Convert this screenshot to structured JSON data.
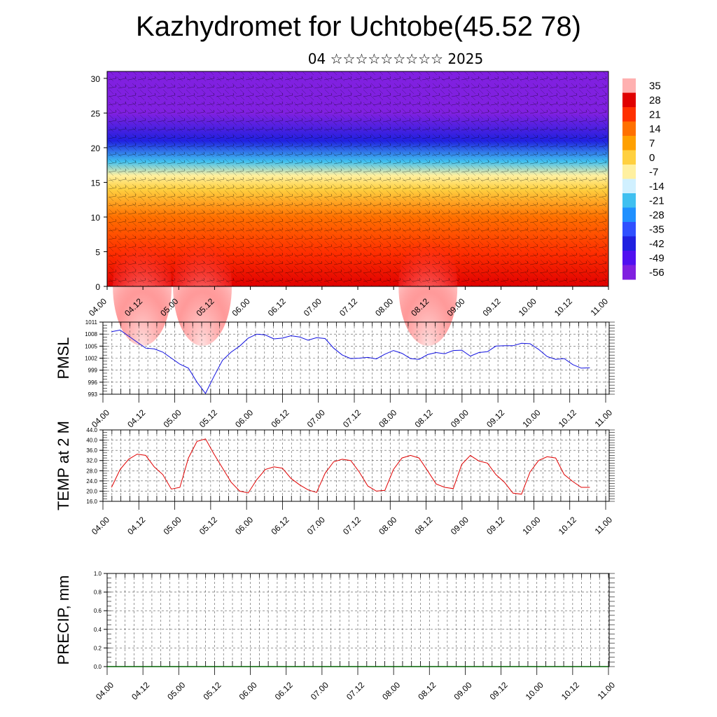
{
  "header": {
    "title": "Kazhydromet for Uchtobe(45.52 78)",
    "subtitle": "04 ☆☆☆☆☆☆☆☆☆ 2025"
  },
  "x_ticks": [
    "04.00",
    "04.12",
    "05.00",
    "05.12",
    "06.00",
    "06.12",
    "07.00",
    "07.12",
    "08.00",
    "08.12",
    "09.00",
    "09.12",
    "10.00",
    "10.12",
    "11.00"
  ],
  "chart_data": [
    {
      "type": "heatmap",
      "name": "vertical-profile",
      "y_ticks": [
        "0",
        "5",
        "10",
        "15",
        "20",
        "25",
        "30"
      ],
      "ylim": [
        0,
        31
      ],
      "colorbar": {
        "labels": [
          "35",
          "28",
          "21",
          "14",
          "7",
          "0",
          "-7",
          "-14",
          "-21",
          "-28",
          "-35",
          "-42",
          "-49",
          "-56"
        ],
        "colors": [
          "#ffb0b0",
          "#e00000",
          "#ff3000",
          "#ff7000",
          "#ffa000",
          "#ffd040",
          "#fff0a0",
          "#d0f0ff",
          "#40c0f0",
          "#2090ff",
          "#3050ff",
          "#2020e0",
          "#5010f0",
          "#8020e0"
        ]
      },
      "temperature_profile": [
        {
          "height": 0,
          "value": 30
        },
        {
          "height": 5,
          "value": 22
        },
        {
          "height": 10,
          "value": 12
        },
        {
          "height": 14,
          "value": 2
        },
        {
          "height": 16,
          "value": -8
        },
        {
          "height": 18,
          "value": -22
        },
        {
          "height": 21,
          "value": -40
        },
        {
          "height": 25,
          "value": -56
        },
        {
          "height": 31,
          "value": -62
        }
      ]
    },
    {
      "type": "line",
      "name": "pmsl",
      "ylabel": "PMSL",
      "y_ticks": [
        "1011",
        "1008",
        "1005",
        "1002",
        "999",
        "996",
        "993"
      ],
      "ylim": [
        993,
        1011
      ],
      "color": "#1010e0",
      "values": [
        1008.6,
        1009.0,
        1007.5,
        1006.0,
        1004.5,
        1004.3,
        1003.5,
        1002.0,
        1000.5,
        999.5,
        996.0,
        993.2,
        997.5,
        1001.5,
        1003.5,
        1005.0,
        1007.0,
        1008.0,
        1007.8,
        1006.8,
        1007.0,
        1007.6,
        1007.3,
        1006.5,
        1007.1,
        1006.9,
        1004.5,
        1002.8,
        1001.9,
        1002.0,
        1002.2,
        1001.8,
        1003.0,
        1003.9,
        1003.2,
        1001.9,
        1001.7,
        1002.9,
        1003.4,
        1003.1,
        1003.9,
        1004.0,
        1002.5,
        1003.4,
        1003.6,
        1005.0,
        1005.1,
        1005.1,
        1005.7,
        1005.6,
        1004.2,
        1002.4,
        1001.7,
        1001.9,
        1000.4,
        999.5,
        999.6
      ],
      "x_range": [
        0.12,
        6.78
      ]
    },
    {
      "type": "line",
      "name": "temp-2m",
      "ylabel": "TEMP at 2 M",
      "y_ticks": [
        "44.0",
        "40.0",
        "36.0",
        "32.0",
        "28.0",
        "24.0",
        "20.0",
        "16.0"
      ],
      "ylim": [
        16,
        44
      ],
      "color": "#e00000",
      "values": [
        21.5,
        28.5,
        32.5,
        34.5,
        34.0,
        29.5,
        26.5,
        20.8,
        21.5,
        33.0,
        39.5,
        40.5,
        34.5,
        29.0,
        23.5,
        20.0,
        19.3,
        24.5,
        28.5,
        29.5,
        29.0,
        25.0,
        22.5,
        20.5,
        19.5,
        27.0,
        31.5,
        32.5,
        32.0,
        27.5,
        22.0,
        20.0,
        20.3,
        28.5,
        33.0,
        34.0,
        33.0,
        28.0,
        22.8,
        21.5,
        21.0,
        30.5,
        34.0,
        31.8,
        31.0,
        26.5,
        23.5,
        19.2,
        18.8,
        27.5,
        32.0,
        33.5,
        33.0,
        26.5,
        23.8,
        21.5,
        21.5
      ],
      "x_range": [
        0.12,
        6.78
      ]
    },
    {
      "type": "line",
      "name": "precip",
      "ylabel": "PRECIP, mm",
      "y_ticks": [
        "1.0",
        "0.8",
        "0.6",
        "0.4",
        "0.2",
        "0.0"
      ],
      "ylim": [
        0,
        1
      ],
      "color": "#006000",
      "values": [
        0,
        0,
        0,
        0,
        0,
        0,
        0,
        0,
        0,
        0,
        0,
        0,
        0,
        0,
        0,
        0,
        0,
        0,
        0,
        0,
        0,
        0,
        0,
        0,
        0,
        0,
        0,
        0,
        0,
        0,
        0,
        0,
        0,
        0,
        0,
        0,
        0,
        0,
        0,
        0,
        0,
        0,
        0,
        0,
        0,
        0,
        0,
        0,
        0,
        0,
        0,
        0,
        0,
        0,
        0,
        0,
        0
      ],
      "x_range": [
        0,
        7
      ]
    }
  ]
}
